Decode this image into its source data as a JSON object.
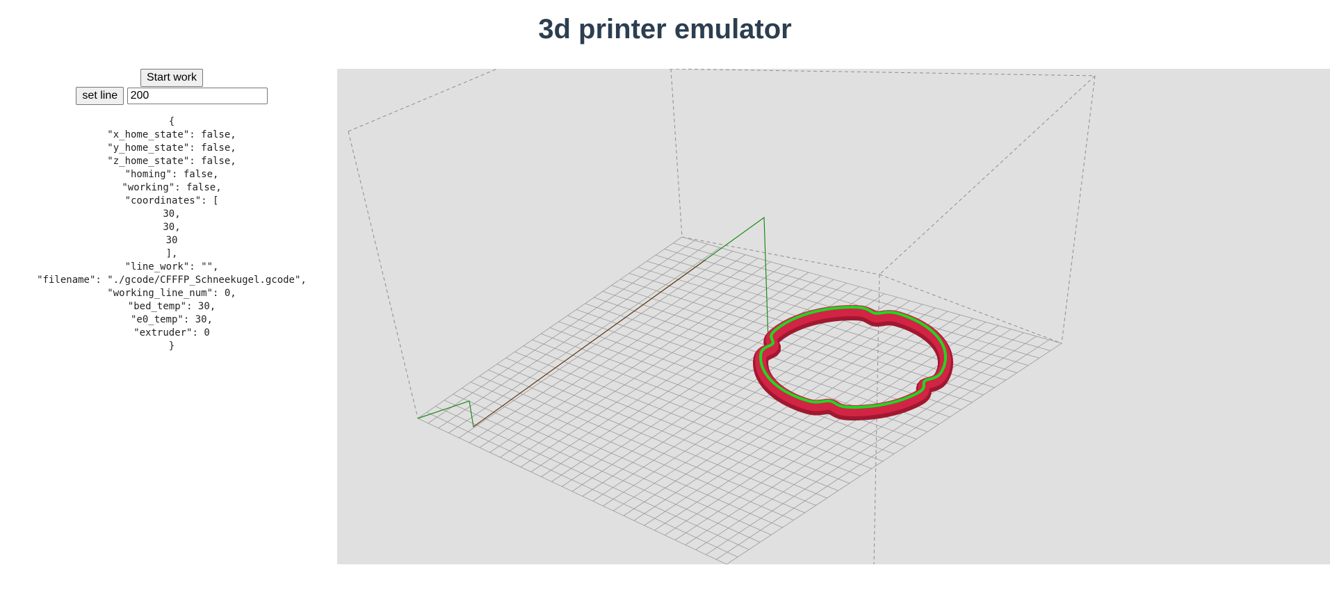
{
  "header": {
    "title": "3d printer emulator"
  },
  "controls": {
    "start_label": "Start work",
    "set_line_label": "set line",
    "line_value": "200"
  },
  "state_lines": [
    "{",
    "\"x_home_state\": false,",
    "\"y_home_state\": false,",
    "\"z_home_state\": false,",
    "\"homing\": false,",
    "\"working\": false,",
    "\"coordinates\": [",
    "30,",
    "30,",
    "30",
    "],",
    "\"line_work\": \"\",",
    "\"filename\": \"./gcode/CFFFP_Schneekugel.gcode\",",
    "\"working_line_num\": 0,",
    "\"bed_temp\": 30,",
    "\"e0_temp\": 30,",
    "\"extruder\": 0",
    "}"
  ],
  "colors": {
    "title": "#2c3e50",
    "viewport_bg": "#e0e0e0",
    "grid": "#9a9a9a",
    "travel_path": "#1a8a1a",
    "print_outer": "#c41e3a",
    "print_inner": "#22d622"
  }
}
